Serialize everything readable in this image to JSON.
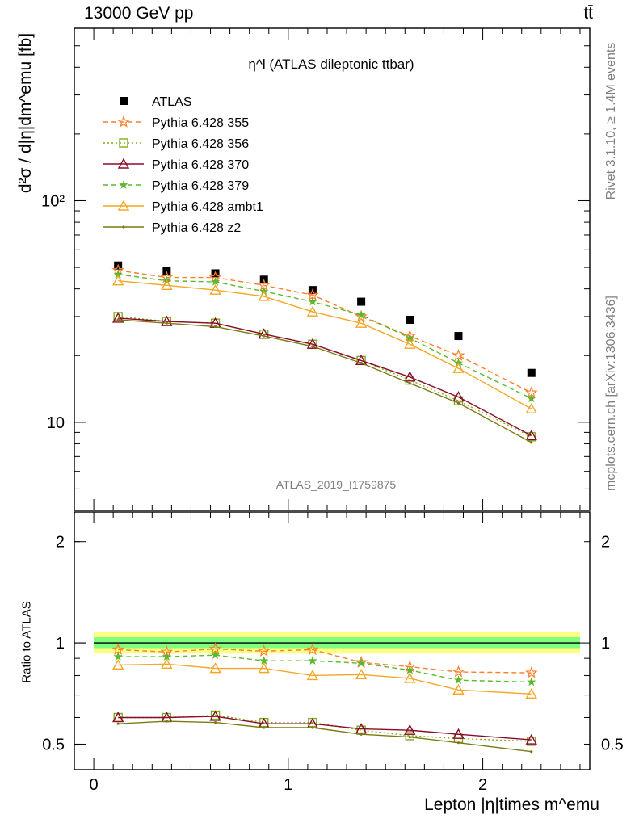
{
  "header": {
    "left": "13000 GeV pp",
    "right": "tt̄"
  },
  "side_labels": {
    "rivet": "Rivet 3.1.10, ≥ 1.4M events",
    "mcplots": "mcplots.cern.ch [arXiv:1306.3436]"
  },
  "watermark": "ATLAS_2019_I1759875",
  "colors": {
    "ATLAS": "#000000",
    "355": "#ff7f2a",
    "356": "#7faa1f",
    "370": "#8b0a2a",
    "379": "#5cb82b",
    "ambt1": "#f5a623",
    "z2": "#7a7a10",
    "band_outer": "#ffff80",
    "band_inner": "#80ff80"
  },
  "chart_data": [
    {
      "type": "line",
      "title": "η^l (ATLAS dileptonic ttbar)",
      "ylabel": "d²σ / d|η|dm^emu [fb]",
      "yscale": "log",
      "ylim": [
        4,
        600
      ],
      "xlim": [
        -0.1,
        2.55
      ],
      "x": [
        0.125,
        0.375,
        0.625,
        0.875,
        1.125,
        1.375,
        1.625,
        1.875,
        2.25
      ],
      "y_ticks": [
        {
          "value": 10,
          "label": "10"
        },
        {
          "value": 100,
          "label": "10²"
        }
      ],
      "legend_position": "top-left",
      "series": [
        {
          "name": "ATLAS",
          "key": "ATLAS",
          "marker": "square",
          "dash": "none",
          "values": [
            51,
            48,
            47,
            44,
            39.5,
            35,
            29,
            24.5,
            16.7
          ]
        },
        {
          "name": "Pythia 6.428 355",
          "key": "355",
          "marker": "star",
          "dash": "dashed",
          "values": [
            48.5,
            45,
            45,
            41.5,
            37.5,
            30,
            24.5,
            20,
            13.6
          ]
        },
        {
          "name": "Pythia 6.428 356",
          "key": "356",
          "marker": "square-open",
          "dash": "dotted",
          "values": [
            30,
            28.5,
            28,
            25,
            22.5,
            19,
            15.5,
            12.5,
            8.6
          ]
        },
        {
          "name": "Pythia 6.428 370",
          "key": "370",
          "marker": "triangle-open",
          "dash": "none",
          "values": [
            29.5,
            28.5,
            28,
            25,
            22.5,
            19,
            16,
            13,
            8.7
          ]
        },
        {
          "name": "Pythia 6.428 379",
          "key": "379",
          "marker": "star-small",
          "dash": "dashed",
          "values": [
            46.5,
            43.5,
            43,
            39,
            35,
            30.5,
            24,
            18.5,
            12.8
          ]
        },
        {
          "name": "Pythia 6.428 ambt1",
          "key": "ambt1",
          "marker": "triangle-open",
          "dash": "none",
          "values": [
            43.5,
            41.5,
            39.5,
            37,
            31.5,
            28,
            22.5,
            17.5,
            11.5
          ]
        },
        {
          "name": "Pythia 6.428 z2",
          "key": "z2",
          "marker": "dot",
          "dash": "none",
          "values": [
            29,
            28,
            27,
            24.5,
            22,
            18.5,
            15,
            12.2,
            8.1
          ]
        }
      ]
    },
    {
      "type": "line",
      "title": "",
      "ylabel": "Ratio to ATLAS",
      "xlabel": "Lepton |η|times m^emu",
      "yscale": "log",
      "ylim": [
        0.42,
        2.45
      ],
      "xlim": [
        -0.1,
        2.55
      ],
      "x": [
        0.125,
        0.375,
        0.625,
        0.875,
        1.125,
        1.375,
        1.625,
        1.875,
        2.25
      ],
      "y_ticks": [
        {
          "value": 0.5,
          "label": "0.5"
        },
        {
          "value": 1,
          "label": "1"
        },
        {
          "value": 2,
          "label": "2"
        }
      ],
      "x_ticks": [
        {
          "value": 0,
          "label": "0"
        },
        {
          "value": 1,
          "label": "1"
        },
        {
          "value": 2,
          "label": "2"
        }
      ],
      "band": {
        "outer": [
          0.93,
          1.08
        ],
        "inner": [
          0.965,
          1.04
        ]
      },
      "series": [
        {
          "name": "Pythia 6.428 355",
          "key": "355",
          "marker": "star",
          "dash": "dashed",
          "values": [
            0.955,
            0.94,
            0.96,
            0.945,
            0.955,
            0.875,
            0.85,
            0.82,
            0.815
          ]
        },
        {
          "name": "Pythia 6.428 356",
          "key": "356",
          "marker": "square-open",
          "dash": "dotted",
          "values": [
            0.6,
            0.6,
            0.61,
            0.58,
            0.58,
            0.55,
            0.53,
            0.52,
            0.51
          ]
        },
        {
          "name": "Pythia 6.428 370",
          "key": "370",
          "marker": "triangle-open",
          "dash": "none",
          "values": [
            0.6,
            0.6,
            0.605,
            0.575,
            0.575,
            0.555,
            0.55,
            0.535,
            0.515
          ]
        },
        {
          "name": "Pythia 6.428 379",
          "key": "379",
          "marker": "star-small",
          "dash": "dashed",
          "values": [
            0.91,
            0.91,
            0.92,
            0.885,
            0.885,
            0.87,
            0.83,
            0.775,
            0.765
          ]
        },
        {
          "name": "Pythia 6.428 ambt1",
          "key": "ambt1",
          "marker": "triangle-open",
          "dash": "none",
          "values": [
            0.86,
            0.865,
            0.84,
            0.84,
            0.8,
            0.805,
            0.785,
            0.725,
            0.705
          ]
        },
        {
          "name": "Pythia 6.428 z2",
          "key": "z2",
          "marker": "dot",
          "dash": "none",
          "values": [
            0.575,
            0.585,
            0.58,
            0.56,
            0.56,
            0.535,
            0.525,
            0.505,
            0.475
          ]
        }
      ]
    }
  ]
}
